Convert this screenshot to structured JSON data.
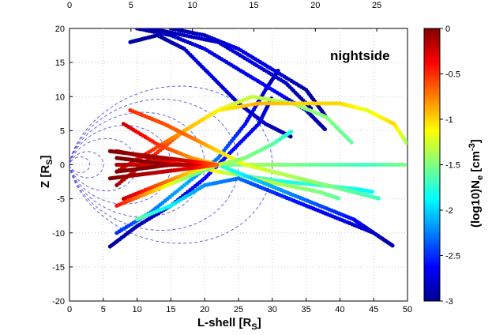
{
  "chart_data": {
    "type": "scatter",
    "title": "",
    "annotation": "nightside",
    "xlabel": {
      "main": "L-shell [R",
      "sub": "S",
      "close": "]"
    },
    "ylabel": {
      "main": "Z [R",
      "sub": "S",
      "close": "]"
    },
    "xlim": [
      0,
      50
    ],
    "ylim": [
      -20,
      20
    ],
    "top_xlim": [
      0,
      27.5
    ],
    "xticks": [
      "0",
      "5",
      "10",
      "15",
      "20",
      "25",
      "30",
      "35",
      "40",
      "45",
      "50"
    ],
    "yticks": [
      "20",
      "15",
      "10",
      "5",
      "0",
      "-5",
      "-10",
      "-15",
      "-20"
    ],
    "top_ticks": [
      "0",
      "5",
      "10",
      "15",
      "20",
      "25"
    ],
    "grid": true,
    "colorbar": {
      "label": {
        "main": "(log10)N",
        "sub": "e",
        "unit_main": " [cm",
        "unit_sup": "-3",
        "unit_close": "]"
      },
      "range": [
        -3,
        0
      ],
      "ticks": [
        "0",
        "-0.5",
        "-1",
        "-1.5",
        "-2",
        "-2.5",
        "-3"
      ],
      "colormap": "jet"
    },
    "field_lines_L": [
      3,
      5,
      10,
      15,
      20,
      25,
      30
    ],
    "series": [
      {
        "x": [
          6,
          10,
          15,
          20,
          24,
          28,
          30
        ],
        "y": [
          -12,
          -9,
          -6,
          -2,
          2,
          6,
          10
        ],
        "c": [
          -2.9,
          -2.85,
          -2.8,
          -2.6,
          -2.6,
          -2.7,
          -2.8
        ]
      },
      {
        "x": [
          7,
          12,
          17,
          22,
          26,
          29,
          31
        ],
        "y": [
          -10,
          -7,
          -3,
          1,
          6,
          11,
          14
        ],
        "c": [
          -2.5,
          -2.3,
          -2.1,
          -2.3,
          -2.6,
          -2.8,
          -2.9
        ]
      },
      {
        "x": [
          9,
          13,
          17,
          21,
          25,
          29,
          33
        ],
        "y": [
          18,
          19,
          17,
          13,
          9,
          6,
          4
        ],
        "c": [
          -2.9,
          -2.9,
          -2.8,
          -2.7,
          -2.8,
          -2.8,
          -2.9
        ]
      },
      {
        "x": [
          10,
          15,
          20,
          25,
          30,
          35,
          38
        ],
        "y": [
          20,
          19,
          17,
          14,
          11,
          8,
          5
        ],
        "c": [
          -2.9,
          -2.8,
          -2.7,
          -2.7,
          -2.6,
          -2.8,
          -2.9
        ]
      },
      {
        "x": [
          12,
          17,
          22,
          27,
          32,
          36
        ],
        "y": [
          20,
          19,
          18,
          15,
          12,
          8
        ],
        "c": [
          -2.9,
          -2.8,
          -2.8,
          -2.7,
          -2.8,
          -2.9
        ]
      },
      {
        "x": [
          15,
          20,
          25,
          30,
          35,
          38
        ],
        "y": [
          20,
          19,
          17,
          14,
          11,
          7
        ],
        "c": [
          -2.9,
          -2.8,
          -2.7,
          -2.7,
          -2.9,
          -2.9
        ]
      },
      {
        "x": [
          7,
          12,
          17,
          22,
          27,
          33,
          38,
          42
        ],
        "y": [
          -3,
          1,
          5,
          8,
          10,
          9,
          7,
          3
        ],
        "c": [
          -0.1,
          -0.4,
          -0.8,
          -1.2,
          -1.3,
          -1.4,
          -1.5,
          -1.6
        ]
      },
      {
        "x": [
          7,
          12,
          17,
          22,
          28,
          34,
          40,
          44,
          48,
          50
        ],
        "y": [
          -1,
          2,
          5,
          8,
          9,
          9,
          9,
          8,
          6,
          3
        ],
        "c": [
          -0.2,
          -0.5,
          -0.9,
          -1.1,
          -0.9,
          -1.0,
          -1.0,
          -1.2,
          -1.0,
          -1.4
        ]
      },
      {
        "x": [
          7,
          12,
          17,
          22,
          27,
          32,
          38,
          44,
          50
        ],
        "y": [
          0,
          0,
          0,
          0,
          0,
          0,
          0,
          0,
          0
        ],
        "c": [
          -0.1,
          -0.3,
          -1.2,
          -1.6,
          -1.4,
          -1.5,
          -1.6,
          -1.7,
          -1.5
        ]
      },
      {
        "x": [
          7,
          12,
          17,
          22,
          27,
          32,
          37,
          42,
          45
        ],
        "y": [
          2,
          1,
          0,
          -1,
          -1.8,
          -2.5,
          -3,
          -3.5,
          -4
        ],
        "c": [
          -0.1,
          -0.2,
          -0.5,
          -1.2,
          -1.6,
          -1.8,
          -1.7,
          -1.8,
          -1.9
        ]
      },
      {
        "x": [
          9,
          14,
          18,
          22,
          26,
          30,
          34,
          38,
          42,
          46
        ],
        "y": [
          8,
          6,
          4,
          2,
          0,
          -1,
          -2,
          -3,
          -4,
          -5
        ],
        "c": [
          -0.5,
          -0.6,
          -0.7,
          -1.0,
          -1.2,
          -1.3,
          -1.4,
          -1.5,
          -1.6,
          -1.7
        ]
      },
      {
        "x": [
          8,
          13,
          18,
          22,
          27,
          32,
          37,
          40
        ],
        "y": [
          6,
          3,
          1,
          0,
          -2,
          -3,
          -4,
          -5
        ],
        "c": [
          -0.2,
          -0.5,
          -0.8,
          -1.0,
          -1.2,
          -1.4,
          -1.5,
          -1.6
        ]
      },
      {
        "x": [
          7,
          12,
          17,
          22,
          27,
          32,
          37,
          42,
          45
        ],
        "y": [
          -6,
          -4,
          -2,
          0,
          -2,
          -4,
          -6,
          -8,
          -10
        ],
        "c": [
          -0.4,
          -0.9,
          -1.4,
          -1.7,
          -2.0,
          -2.2,
          -2.4,
          -2.6,
          -2.8
        ]
      },
      {
        "x": [
          10,
          15,
          20,
          25,
          30,
          35,
          40,
          45,
          48
        ],
        "y": [
          -8,
          -6,
          -3,
          -2,
          -4,
          -6,
          -8,
          -10,
          -12
        ],
        "c": [
          -1.6,
          -1.9,
          -2.2,
          -2.3,
          -2.5,
          -2.6,
          -2.7,
          -2.8,
          -2.9
        ]
      },
      {
        "x": [
          8,
          13,
          18,
          22,
          26,
          30,
          33
        ],
        "y": [
          -5,
          -3,
          -1,
          0,
          1,
          3,
          5
        ],
        "c": [
          -0.2,
          -0.6,
          -1.0,
          -1.3,
          -1.5,
          -1.6,
          -1.8
        ]
      },
      {
        "x": [
          7,
          11,
          15,
          19,
          22
        ],
        "y": [
          1,
          0.5,
          0,
          0,
          0
        ],
        "c": [
          0,
          0,
          -0.1,
          -0.3,
          -0.6
        ]
      },
      {
        "x": [
          7,
          11,
          15,
          19,
          22
        ],
        "y": [
          -1,
          -0.5,
          0,
          0,
          0
        ],
        "c": [
          0,
          0,
          -0.1,
          -0.2,
          -0.5
        ]
      },
      {
        "x": [
          6,
          10,
          14,
          18,
          22
        ],
        "y": [
          2,
          1.5,
          1,
          0.5,
          0
        ],
        "c": [
          0,
          -0.1,
          -0.1,
          -0.3,
          -0.7
        ]
      },
      {
        "x": [
          6,
          10,
          14,
          18,
          22
        ],
        "y": [
          -2,
          -1.5,
          -1,
          -0.5,
          0
        ],
        "c": [
          0,
          -0.1,
          -0.2,
          -0.3,
          -0.7
        ]
      }
    ]
  }
}
